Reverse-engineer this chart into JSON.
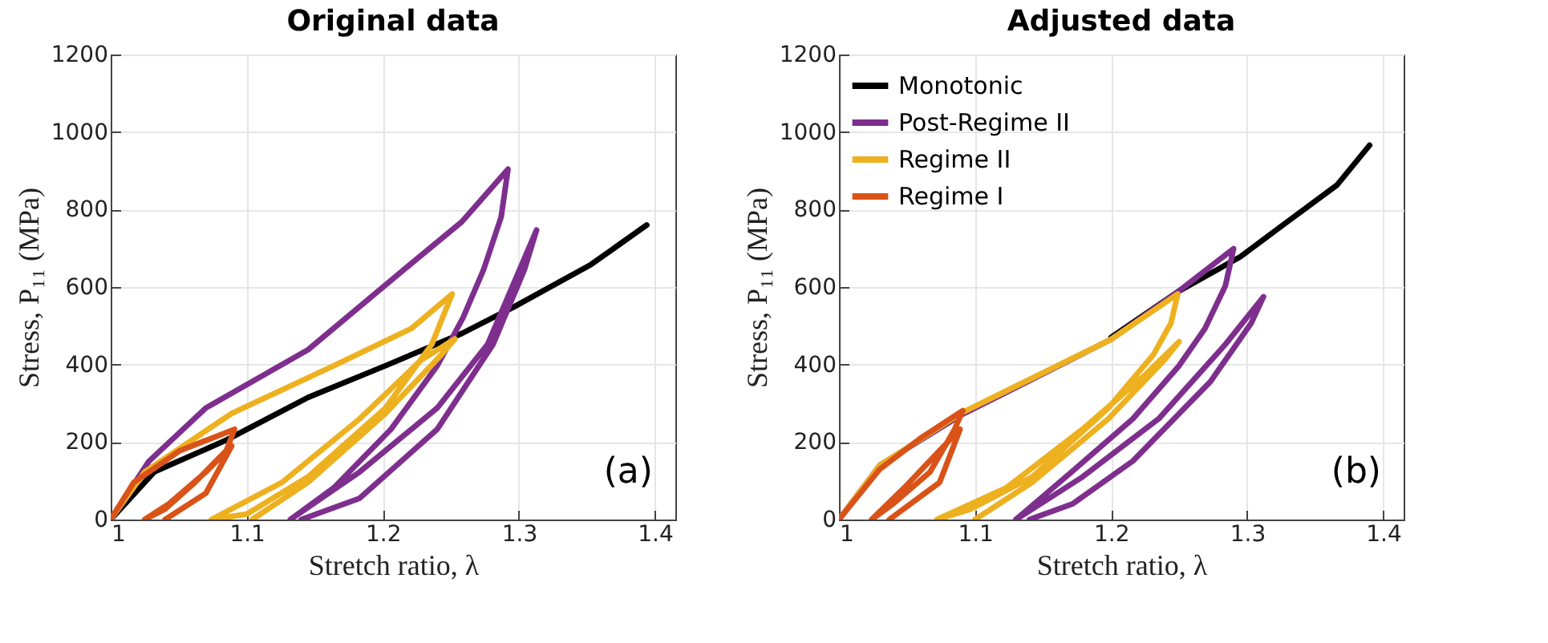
{
  "chart_data": [
    {
      "type": "line",
      "title": "Original data",
      "xlabel": "Stretch ratio, λ",
      "ylabel": "Stress, P₁₁ (MPa)",
      "xlim": [
        1,
        1.415
      ],
      "ylim": [
        0,
        1200
      ],
      "xticks": [
        1,
        1.1,
        1.2,
        1.3,
        1.4
      ],
      "yticks": [
        0,
        200,
        400,
        600,
        800,
        1000,
        1200
      ],
      "grid": true,
      "annotations": [
        "(a)"
      ],
      "series": [
        {
          "color": "#000000",
          "x": [
            1,
            1.032,
            1.085,
            1.145,
            1.202,
            1.258,
            1.296,
            1.353,
            1.394
          ],
          "values": [
            0,
            123,
            205,
            315,
            397,
            480,
            548,
            658,
            760
          ]
        },
        {
          "color": "#7e2f8e",
          "x": [
            1,
            1.028,
            1.07,
            1.145,
            1.22,
            1.258,
            1.292,
            1.287,
            1.274,
            1.259,
            1.24,
            1.206,
            1.164,
            1.132,
            1.183,
            1.24,
            1.277,
            1.313,
            1.304,
            1.281,
            1.24,
            1.183,
            1.14
          ],
          "values": [
            0,
            150,
            288,
            438,
            658,
            768,
            904,
            781,
            644,
            521,
            397,
            233,
            82,
            0,
            123,
            288,
            452,
            747,
            644,
            452,
            233,
            55,
            0
          ]
        },
        {
          "color": "#edb120",
          "x": [
            1,
            1.025,
            1.089,
            1.164,
            1.221,
            1.251,
            1.247,
            1.236,
            1.202,
            1.145,
            1.1,
            1.074,
            1.126,
            1.183,
            1.228,
            1.253,
            1.243,
            1.202,
            1.145,
            1.104
          ],
          "values": [
            0,
            123,
            274,
            397,
            493,
            582,
            548,
            452,
            288,
            110,
            14,
            0,
            96,
            260,
            411,
            466,
            425,
            274,
            96,
            0
          ]
        },
        {
          "color": "#d95319",
          "x": [
            1,
            1.017,
            1.051,
            1.091,
            1.085,
            1.062,
            1.04,
            1.025,
            1.043,
            1.07,
            1.089,
            1.07,
            1.04
          ],
          "values": [
            0,
            96,
            178,
            233,
            178,
            96,
            27,
            0,
            41,
            123,
            190,
            68,
            0
          ]
        }
      ]
    },
    {
      "type": "line",
      "title": "Adjusted data",
      "xlabel": "Stretch ratio, λ",
      "ylabel": "Stress, P₁₁ (MPa)",
      "xlim": [
        1,
        1.415
      ],
      "ylim": [
        0,
        1200
      ],
      "xticks": [
        1,
        1.1,
        1.2,
        1.3,
        1.4
      ],
      "yticks": [
        0,
        200,
        400,
        600,
        800,
        1000,
        1200
      ],
      "grid": true,
      "legend": "top left",
      "annotations": [
        "(b)"
      ],
      "series": [
        {
          "name": "Monotonic",
          "color": "#000000",
          "x": [
            1.2,
            1.25,
            1.295,
            1.329,
            1.366,
            1.39
          ],
          "values": [
            470,
            590,
            678,
            767,
            863,
            966
          ]
        },
        {
          "name": "Post-Regime II",
          "color": "#7e2f8e",
          "x": [
            1,
            1.03,
            1.09,
            1.2,
            1.25,
            1.29,
            1.284,
            1.269,
            1.25,
            1.216,
            1.171,
            1.13,
            1.179,
            1.235,
            1.284,
            1.312,
            1.303,
            1.273,
            1.216,
            1.172,
            1.14
          ],
          "values": [
            0,
            140,
            270,
            465,
            590,
            699,
            603,
            493,
            397,
            260,
            123,
            0,
            110,
            260,
            452,
            575,
            507,
            356,
            151,
            41,
            0
          ]
        },
        {
          "name": "Regime II",
          "color": "#edb120",
          "x": [
            1,
            1.03,
            1.09,
            1.2,
            1.249,
            1.244,
            1.231,
            1.198,
            1.142,
            1.097,
            1.072,
            1.123,
            1.179,
            1.224,
            1.25,
            1.239,
            1.198,
            1.142,
            1.1
          ],
          "values": [
            0,
            140,
            275,
            465,
            582,
            507,
            425,
            288,
            110,
            27,
            0,
            82,
            233,
            370,
            459,
            411,
            260,
            96,
            0
          ]
        },
        {
          "name": "Regime I",
          "color": "#d95319",
          "x": [
            1,
            1.03,
            1.06,
            1.091,
            1.085,
            1.067,
            1.04,
            1.024,
            1.048,
            1.074,
            1.089,
            1.074,
            1.037
          ],
          "values": [
            0,
            130,
            210,
            281,
            233,
            123,
            41,
            0,
            82,
            178,
            233,
            96,
            0
          ]
        }
      ]
    }
  ]
}
